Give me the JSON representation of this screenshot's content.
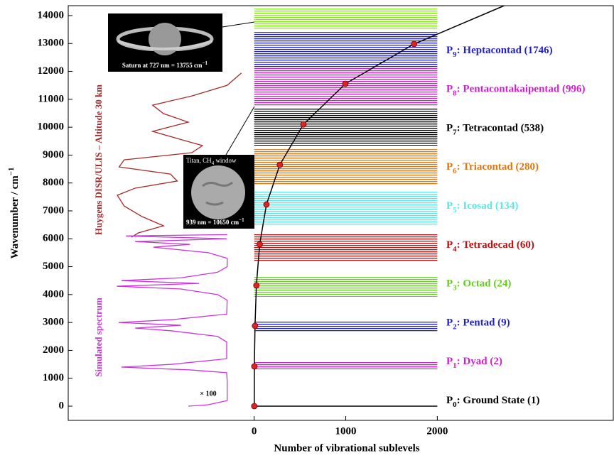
{
  "chart_data": {
    "type": "polyad",
    "x_label": "Number of vibrational sublevels",
    "y_label": "Wavenumber / cm",
    "y_label_sup": "−1",
    "xlim": [
      -2031,
      3922
    ],
    "ylim": [
      -509,
      14355
    ],
    "xticks": [
      0,
      1000,
      2000
    ],
    "yticks": [
      0,
      1000,
      2000,
      3000,
      4000,
      5000,
      6000,
      7000,
      8000,
      9000,
      10000,
      11000,
      12000,
      13000,
      14000
    ],
    "polyads": [
      {
        "label": "P",
        "sub": "0",
        "name": ": Ground State (1)",
        "count": 1,
        "wavenumber": 0,
        "range": [
          0,
          0
        ],
        "color": "#000000"
      },
      {
        "label": "P",
        "sub": "1",
        "name": ": Dyad (2)",
        "count": 2,
        "wavenumber": 1425,
        "range": [
          1320,
          1580
        ],
        "color": "#cc22cc"
      },
      {
        "label": "P",
        "sub": "2",
        "name": ": Pentad (9)",
        "count": 9,
        "wavenumber": 2880,
        "range": [
          2670,
          3050
        ],
        "color": "#2222cc"
      },
      {
        "label": "P",
        "sub": "3",
        "name": ": Octad (24)",
        "count": 24,
        "wavenumber": 4330,
        "range": [
          3920,
          4630
        ],
        "color": "#66cc22"
      },
      {
        "label": "P",
        "sub": "4",
        "name": ": Tetradecad (60)",
        "count": 60,
        "wavenumber": 5800,
        "range": [
          5190,
          6160
        ],
        "color": "#bb1111"
      },
      {
        "label": "P",
        "sub": "5",
        "name": ": Icosad (134)",
        "count": 134,
        "wavenumber": 7230,
        "range": [
          6490,
          7690
        ],
        "color": "#55e8e8"
      },
      {
        "label": "P",
        "sub": "6",
        "name": ": Triacontad (280)",
        "count": 280,
        "wavenumber": 8650,
        "range": [
          7940,
          9210
        ],
        "color": "#dd7711"
      },
      {
        "label": "P",
        "sub": "7",
        "name": ": Tetracontad (538)",
        "count": 538,
        "wavenumber": 10100,
        "range": [
          9340,
          10690
        ],
        "color": "#000000"
      },
      {
        "label": "P",
        "sub": "8",
        "name": ": Pentacontakaipentad (996)",
        "count": 996,
        "wavenumber": 11555,
        "range": [
          10740,
          12140
        ],
        "color": "#cc22cc"
      },
      {
        "label": "P",
        "sub": "9",
        "name": ": Heptacontad (1746)",
        "count": 1746,
        "wavenumber": 12980,
        "range": [
          12140,
          13410
        ],
        "color": "#2222cc"
      }
    ],
    "upper_band": {
      "range": [
        13490,
        14250
      ],
      "color": "#7fee00"
    },
    "dot_color": "#dd2222",
    "curve_color": "#000000",
    "curve_end": [
      2730,
      14355
    ],
    "spectra": [
      {
        "name": "Huygens DISR/ULIS – Altitude 30 km",
        "color": "#a52a2a",
        "wavenumber": [
          11940,
          11500,
          11120,
          10790,
          10485,
          10180,
          9850,
          9595,
          9340,
          9085,
          8830,
          8575,
          8320,
          8070,
          7815,
          7560,
          7175,
          6795,
          6465,
          6210,
          6055
        ],
        "x": [
          -140,
          -295,
          -680,
          -1110,
          -990,
          -720,
          -1110,
          -840,
          -565,
          -680,
          -1420,
          -1475,
          -915,
          -840,
          -1300,
          -1495,
          -1420,
          -1225,
          -990,
          -1265,
          -1340
        ]
      },
      {
        "name": "Simulated spectrum",
        "color": "#cc33dd",
        "wavenumber": [
          6150,
          6100,
          6000,
          5900,
          5800,
          5700,
          5500,
          5300,
          5000,
          4800,
          4600,
          4500,
          4400,
          4300,
          4200,
          4000,
          3800,
          3300,
          3100,
          3000,
          2900,
          2800,
          2700,
          2500,
          2300,
          1700,
          1500,
          1400,
          1300,
          1200,
          900,
          200,
          50,
          0
        ],
        "x": [
          -295,
          -1400,
          -300,
          -1300,
          -700,
          -1100,
          -500,
          -295,
          -295,
          -400,
          -800,
          -1450,
          -600,
          -1500,
          -800,
          -400,
          -295,
          -300,
          -900,
          -1480,
          -800,
          -1300,
          -900,
          -400,
          -300,
          -300,
          -900,
          -1450,
          -700,
          -300,
          -295,
          -295,
          -500,
          -720
        ]
      }
    ],
    "annotation": "× 100",
    "saturn": {
      "caption": "Saturn at 727 nm = 13755 cm",
      "caption_sup": "−1"
    },
    "titan": {
      "title": "Titan, CH",
      "title_sub": "4",
      "title_end": " window",
      "caption": "939 nm = 10650 cm",
      "caption_sup": "−1"
    }
  }
}
